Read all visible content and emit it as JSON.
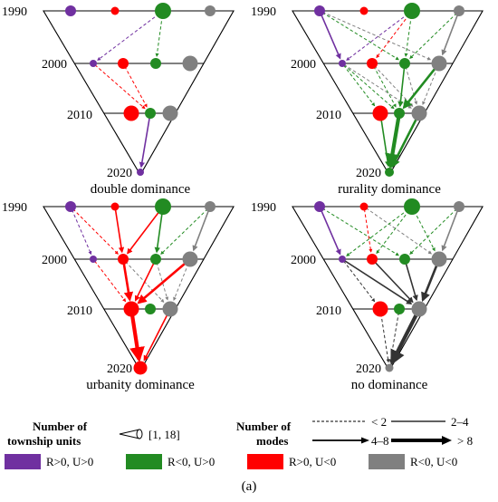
{
  "panels": [
    {
      "title": "double dominance",
      "years": [
        "1990",
        "2000",
        "2010",
        "2020"
      ],
      "links": [
        {
          "from": [
            0,
            2
          ],
          "to": [
            1,
            0
          ],
          "type": "R>0, U>0",
          "modes": "<2"
        },
        {
          "from": [
            0,
            2
          ],
          "to": [
            1,
            2
          ],
          "type": "R<0, U>0",
          "modes": "<2"
        },
        {
          "from": [
            1,
            0
          ],
          "to": [
            2,
            1
          ],
          "type": "R>0, U<0",
          "modes": "<2"
        },
        {
          "from": [
            1,
            1
          ],
          "to": [
            2,
            1
          ],
          "type": "R>0, U<0",
          "modes": "<2"
        },
        {
          "from": [
            2,
            1
          ],
          "to": [
            3,
            0
          ],
          "type": "R>0, U>0",
          "modes": "2-4"
        }
      ]
    },
    {
      "title": "rurality dominance",
      "years": [
        "1990",
        "2000",
        "2010",
        "2020"
      ],
      "links": [
        {
          "from": [
            0,
            0
          ],
          "to": [
            1,
            0
          ],
          "type": "R>0, U>0",
          "modes": "2-4"
        },
        {
          "from": [
            0,
            0
          ],
          "to": [
            1,
            2
          ],
          "type": "R<0, U>0",
          "modes": "<2"
        },
        {
          "from": [
            0,
            0
          ],
          "to": [
            1,
            3
          ],
          "type": "R<0, U<0",
          "modes": "<2"
        },
        {
          "from": [
            0,
            2
          ],
          "to": [
            1,
            0
          ],
          "type": "R>0, U>0",
          "modes": "<2"
        },
        {
          "from": [
            0,
            2
          ],
          "to": [
            1,
            1
          ],
          "type": "R>0, U<0",
          "modes": "<2"
        },
        {
          "from": [
            0,
            2
          ],
          "to": [
            1,
            2
          ],
          "type": "R<0, U>0",
          "modes": "<2"
        },
        {
          "from": [
            0,
            3
          ],
          "to": [
            1,
            2
          ],
          "type": "R<0, U>0",
          "modes": "<2"
        },
        {
          "from": [
            0,
            3
          ],
          "to": [
            1,
            3
          ],
          "type": "R<0, U<0",
          "modes": "2-4"
        },
        {
          "from": [
            1,
            0
          ],
          "to": [
            2,
            0
          ],
          "type": "R<0, U>0",
          "modes": "<2"
        },
        {
          "from": [
            1,
            0
          ],
          "to": [
            2,
            1
          ],
          "type": "R<0, U>0",
          "modes": "<2"
        },
        {
          "from": [
            1,
            0
          ],
          "to": [
            2,
            2
          ],
          "type": "R<0, U<0",
          "modes": "<2"
        },
        {
          "from": [
            1,
            1
          ],
          "to": [
            2,
            1
          ],
          "type": "R<0, U>0",
          "modes": "<2"
        },
        {
          "from": [
            1,
            1
          ],
          "to": [
            2,
            2
          ],
          "type": "R<0, U<0",
          "modes": "<2"
        },
        {
          "from": [
            1,
            2
          ],
          "to": [
            2,
            1
          ],
          "type": "R<0, U>0",
          "modes": "2-4"
        },
        {
          "from": [
            1,
            2
          ],
          "to": [
            2,
            2
          ],
          "type": "R<0, U<0",
          "modes": "<2"
        },
        {
          "from": [
            1,
            3
          ],
          "to": [
            2,
            1
          ],
          "type": "R<0, U>0",
          "modes": "4-8"
        },
        {
          "from": [
            1,
            3
          ],
          "to": [
            2,
            2
          ],
          "type": "R<0, U<0",
          "modes": "<2"
        },
        {
          "from": [
            2,
            0
          ],
          "to": [
            3,
            0
          ],
          "type": "R<0, U>0",
          "modes": "2-4"
        },
        {
          "from": [
            2,
            1
          ],
          "to": [
            3,
            0
          ],
          "type": "R<0, U>0",
          "modes": ">8"
        },
        {
          "from": [
            2,
            2
          ],
          "to": [
            3,
            0
          ],
          "type": "R<0, U>0",
          "modes": "4-8"
        }
      ]
    },
    {
      "title": "urbanity dominance",
      "years": [
        "1990",
        "2000",
        "2010",
        "2020"
      ],
      "links": [
        {
          "from": [
            0,
            0
          ],
          "to": [
            1,
            0
          ],
          "type": "R>0, U>0",
          "modes": "<2"
        },
        {
          "from": [
            0,
            0
          ],
          "to": [
            1,
            1
          ],
          "type": "R>0, U<0",
          "modes": "<2"
        },
        {
          "from": [
            0,
            1
          ],
          "to": [
            1,
            1
          ],
          "type": "R>0, U<0",
          "modes": "2-4"
        },
        {
          "from": [
            0,
            2
          ],
          "to": [
            1,
            1
          ],
          "type": "R>0, U<0",
          "modes": "2-4"
        },
        {
          "from": [
            0,
            2
          ],
          "to": [
            1,
            2
          ],
          "type": "R<0, U>0",
          "modes": "2-4"
        },
        {
          "from": [
            0,
            3
          ],
          "to": [
            1,
            2
          ],
          "type": "R<0, U>0",
          "modes": "<2"
        },
        {
          "from": [
            0,
            3
          ],
          "to": [
            1,
            3
          ],
          "type": "R<0, U<0",
          "modes": "2-4"
        },
        {
          "from": [
            1,
            0
          ],
          "to": [
            2,
            0
          ],
          "type": "R>0, U<0",
          "modes": "<2"
        },
        {
          "from": [
            1,
            1
          ],
          "to": [
            2,
            0
          ],
          "type": "R>0, U<0",
          "modes": "4-8"
        },
        {
          "from": [
            1,
            1
          ],
          "to": [
            2,
            2
          ],
          "type": "R<0, U<0",
          "modes": "<2"
        },
        {
          "from": [
            1,
            2
          ],
          "to": [
            2,
            0
          ],
          "type": "R>0, U<0",
          "modes": "2-4"
        },
        {
          "from": [
            1,
            2
          ],
          "to": [
            2,
            2
          ],
          "type": "R<0, U<0",
          "modes": "<2"
        },
        {
          "from": [
            1,
            3
          ],
          "to": [
            2,
            0
          ],
          "type": "R>0, U<0",
          "modes": "4-8"
        },
        {
          "from": [
            1,
            3
          ],
          "to": [
            2,
            2
          ],
          "type": "R<0, U<0",
          "modes": "<2"
        },
        {
          "from": [
            2,
            0
          ],
          "to": [
            3,
            0
          ],
          "type": "R>0, U<0",
          "modes": ">8"
        },
        {
          "from": [
            2,
            2
          ],
          "to": [
            3,
            0
          ],
          "type": "R>0, U<0",
          "modes": "2-4"
        }
      ]
    },
    {
      "title": "no dominance",
      "years": [
        "1990",
        "2000",
        "2010",
        "2020"
      ],
      "links": [
        {
          "from": [
            0,
            0
          ],
          "to": [
            1,
            0
          ],
          "type": "R>0, U>0",
          "modes": "2-4"
        },
        {
          "from": [
            0,
            0
          ],
          "to": [
            1,
            2
          ],
          "type": "R<0, U>0",
          "modes": "<2"
        },
        {
          "from": [
            0,
            1
          ],
          "to": [
            1,
            1
          ],
          "type": "R>0, U<0",
          "modes": "<2"
        },
        {
          "from": [
            0,
            1
          ],
          "to": [
            1,
            3
          ],
          "type": "R<0, U<0",
          "modes": "<2"
        },
        {
          "from": [
            0,
            2
          ],
          "to": [
            1,
            0
          ],
          "type": "R<0, U>0",
          "modes": "<2"
        },
        {
          "from": [
            0,
            2
          ],
          "to": [
            1,
            1
          ],
          "type": "R<0, U>0",
          "modes": "<2"
        },
        {
          "from": [
            0,
            2
          ],
          "to": [
            1,
            3
          ],
          "type": "R<0, U>0",
          "modes": "<2"
        },
        {
          "from": [
            0,
            3
          ],
          "to": [
            1,
            2
          ],
          "type": "R<0, U>0",
          "modes": "<2"
        },
        {
          "from": [
            0,
            3
          ],
          "to": [
            1,
            3
          ],
          "type": "R<0, U<0",
          "modes": "2-4"
        },
        {
          "from": [
            1,
            0
          ],
          "to": [
            2,
            0
          ],
          "type": "R<0, U<0",
          "modes": "<2"
        },
        {
          "from": [
            1,
            0
          ],
          "to": [
            2,
            2
          ],
          "type": "R<0, U<0",
          "modes": "2-4"
        },
        {
          "from": [
            1,
            1
          ],
          "to": [
            2,
            2
          ],
          "type": "R<0, U<0",
          "modes": "2-4"
        },
        {
          "from": [
            1,
            2
          ],
          "to": [
            2,
            2
          ],
          "type": "R<0, U<0",
          "modes": "2-4"
        },
        {
          "from": [
            1,
            3
          ],
          "to": [
            2,
            2
          ],
          "type": "R<0, U<0",
          "modes": "4-8"
        },
        {
          "from": [
            2,
            0
          ],
          "to": [
            3,
            0
          ],
          "type": "R<0, U<0",
          "modes": "<2"
        },
        {
          "from": [
            2,
            1
          ],
          "to": [
            3,
            0
          ],
          "type": "R<0, U<0",
          "modes": "<2"
        },
        {
          "from": [
            2,
            2
          ],
          "to": [
            3,
            0
          ],
          "type": "R<0, U<0",
          "modes": ">8"
        }
      ]
    }
  ],
  "legend": {
    "units_title_line1": "Number of",
    "units_title_line2": "township units",
    "units_range": "[1,  18]",
    "modes_title_line1": "Number of",
    "modes_title_line2": "modes",
    "modes_lt2": "< 2",
    "modes_2_4": "2–4",
    "modes_4_8": "4–8",
    "modes_gt8": "> 8",
    "types": [
      {
        "label": "R>0,  U>0",
        "color": "#7030A0"
      },
      {
        "label": "R<0,  U>0",
        "color": "#228B22"
      },
      {
        "label": "R>0,  U<0",
        "color": "#FF0000"
      },
      {
        "label": "R<0,  U<0",
        "color": "#808080"
      }
    ]
  },
  "caption": "(a)"
}
